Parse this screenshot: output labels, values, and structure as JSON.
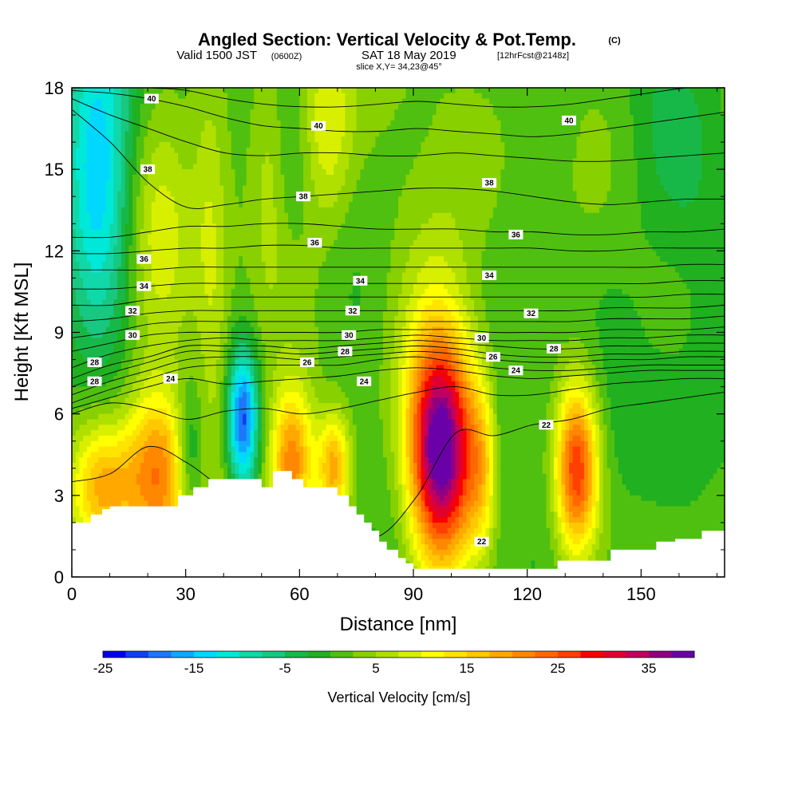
{
  "header": {
    "title_main": "Angled Section: Vertical Velocity & Pot.Temp.",
    "title_unit": "(C)",
    "valid_prefix": "Valid 1500 JST",
    "valid_utc": "(0600Z)",
    "valid_date": "SAT 18 May 2019",
    "forecast": "[12hrFcst@2148z]",
    "slice": "slice X,Y= 34,23@45°"
  },
  "colorbar": {
    "title": "Vertical Velocity [cm/s]",
    "tick_labels": [
      "-25",
      "-15",
      "-5",
      "5",
      "15",
      "25",
      "35"
    ],
    "tick_values": [
      -25,
      -15,
      -5,
      5,
      15,
      25,
      35
    ],
    "range": [
      -25,
      40
    ],
    "colors": [
      "#0000ee",
      "#1040f0",
      "#1c78f8",
      "#10a8ff",
      "#00d8ff",
      "#00e8d8",
      "#10d8a8",
      "#18c880",
      "#18b848",
      "#20b020",
      "#50c010",
      "#88d000",
      "#b0e000",
      "#d8f000",
      "#ffff00",
      "#ffe400",
      "#ffc800",
      "#ffa800",
      "#ff8800",
      "#ff6800",
      "#ff4000",
      "#f80000",
      "#e00030",
      "#c00060",
      "#900080",
      "#6a00a8"
    ]
  },
  "chart_data": {
    "type": "heatmap",
    "title": "Angled Section: Vertical Velocity & Pot.Temp.",
    "xlabel": "Distance [nm]",
    "ylabel": "Height [Kft MSL]",
    "xlim": [
      0,
      172
    ],
    "ylim": [
      0,
      18
    ],
    "x_ticks": [
      0,
      30,
      60,
      90,
      120,
      150
    ],
    "y_ticks": [
      0,
      3,
      6,
      9,
      12,
      15,
      18
    ],
    "background_wind_cms": 1,
    "updrafts": [
      {
        "x": 97,
        "y": 4.6,
        "sx": 6,
        "sy": 3.0,
        "peak_cms": 40
      },
      {
        "x": 133,
        "y": 4.0,
        "sx": 4,
        "sy": 2.2,
        "peak_cms": 27
      },
      {
        "x": 23,
        "y": 3.8,
        "sx": 6,
        "sy": 2.2,
        "peak_cms": 22
      },
      {
        "x": 8,
        "y": 3.3,
        "sx": 6,
        "sy": 1.6,
        "peak_cms": 14
      },
      {
        "x": 58,
        "y": 4.2,
        "sx": 4,
        "sy": 1.9,
        "peak_cms": 22
      },
      {
        "x": 69,
        "y": 4.0,
        "sx": 3,
        "sy": 1.4,
        "peak_cms": 18
      },
      {
        "x": 108,
        "y": 4.0,
        "sx": 3,
        "sy": 2.2,
        "peak_cms": 9
      },
      {
        "x": 38,
        "y": 11.0,
        "sx": 3.5,
        "sy": 6.0,
        "peak_cms": 8
      },
      {
        "x": 22,
        "y": 13.5,
        "sx": 7,
        "sy": 4.0,
        "peak_cms": 9
      },
      {
        "x": 67,
        "y": 16.5,
        "sx": 5,
        "sy": 2.8,
        "peak_cms": 10
      },
      {
        "x": 52,
        "y": 15.0,
        "sx": 3,
        "sy": 3.0,
        "peak_cms": 5
      },
      {
        "x": 100,
        "y": 12.0,
        "sx": 12,
        "sy": 3.0,
        "peak_cms": 4
      }
    ],
    "downdrafts": [
      {
        "x": 7,
        "y": 15.0,
        "sx": 7,
        "sy": 4.0,
        "peak_cms": -18
      },
      {
        "x": 45,
        "y": 5.8,
        "sx": 2.8,
        "sy": 1.8,
        "peak_cms": -22
      },
      {
        "x": 31,
        "y": 4.5,
        "sx": 2.5,
        "sy": 1.6,
        "peak_cms": -8
      },
      {
        "x": 40,
        "y": 14.0,
        "sx": 3,
        "sy": 5.0,
        "peak_cms": -4
      },
      {
        "x": 113,
        "y": 4.5,
        "sx": 2,
        "sy": 2.2,
        "peak_cms": -4
      },
      {
        "x": 145,
        "y": 4.5,
        "sx": 8,
        "sy": 2.5,
        "peak_cms": -4
      },
      {
        "x": 160,
        "y": 14.0,
        "sx": 12,
        "sy": 3.0,
        "peak_cms": -3
      }
    ],
    "terrain": {
      "x": [
        0,
        5,
        8,
        10,
        14,
        22,
        28,
        32,
        36,
        42,
        47,
        50,
        53,
        57,
        58,
        61,
        65,
        68,
        70,
        73,
        75,
        77,
        79,
        81,
        83,
        86,
        88,
        90,
        95,
        104,
        108,
        113,
        119,
        124,
        128,
        142,
        148,
        154,
        159,
        166,
        172
      ],
      "height_kft": [
        2.0,
        2.3,
        2.5,
        2.6,
        2.6,
        2.6,
        3.0,
        3.3,
        3.6,
        3.6,
        3.6,
        3.3,
        3.9,
        3.9,
        3.6,
        3.3,
        3.3,
        3.3,
        3.0,
        2.6,
        2.3,
        2.0,
        1.7,
        1.3,
        1.0,
        0.7,
        0.5,
        0.3,
        0.3,
        0.3,
        0.3,
        0.3,
        0.3,
        0.3,
        0.6,
        1.0,
        1.0,
        1.3,
        1.4,
        1.7,
        1.7
      ]
    },
    "potential_temperature_isentropes": [
      {
        "theta": 22,
        "y": [
          3.5,
          3.8,
          4.8,
          4.2,
          3.2,
          2.6,
          2.3,
          1.8,
          1.5,
          3.0,
          5.3,
          5.2,
          5.6,
          5.8,
          6.2,
          6.4,
          6.6,
          6.8
        ]
      },
      {
        "theta": 23,
        "y": [
          6.0,
          6.4,
          6.2,
          5.8,
          6.1,
          6.2,
          6.0,
          6.2,
          6.5,
          6.8,
          7.0,
          6.7,
          6.7,
          6.9,
          7.1,
          7.2,
          7.3,
          7.3
        ]
      },
      {
        "theta": 24,
        "y": [
          6.2,
          6.6,
          7.0,
          7.3,
          7.1,
          7.2,
          7.3,
          7.4,
          7.6,
          7.7,
          7.6,
          7.4,
          7.3,
          7.4,
          7.5,
          7.6,
          7.6,
          7.6
        ]
      },
      {
        "theta": 25,
        "y": [
          6.4,
          6.9,
          7.3,
          7.7,
          7.8,
          7.8,
          7.8,
          7.8,
          8.0,
          8.1,
          7.9,
          7.7,
          7.6,
          7.6,
          7.7,
          7.8,
          7.8,
          7.8
        ]
      },
      {
        "theta": 26,
        "y": [
          6.7,
          7.2,
          7.6,
          8.0,
          8.1,
          8.1,
          8.0,
          8.1,
          8.2,
          8.3,
          8.2,
          8.0,
          7.9,
          7.9,
          8.0,
          8.0,
          8.1,
          8.1
        ]
      },
      {
        "theta": 27,
        "y": [
          7.0,
          7.5,
          7.9,
          8.3,
          8.3,
          8.3,
          8.2,
          8.3,
          8.4,
          8.5,
          8.4,
          8.2,
          8.1,
          8.1,
          8.2,
          8.2,
          8.3,
          8.3
        ]
      },
      {
        "theta": 28,
        "y": [
          7.3,
          7.8,
          8.1,
          8.5,
          8.5,
          8.5,
          8.4,
          8.5,
          8.6,
          8.7,
          8.6,
          8.5,
          8.4,
          8.4,
          8.5,
          8.5,
          8.6,
          8.6
        ]
      },
      {
        "theta": 29,
        "y": [
          7.7,
          8.2,
          8.5,
          8.7,
          8.8,
          8.7,
          8.7,
          8.7,
          8.8,
          8.9,
          8.8,
          8.7,
          8.7,
          8.7,
          8.8,
          8.8,
          8.9,
          8.9
        ]
      },
      {
        "theta": 30,
        "y": [
          8.3,
          8.6,
          8.9,
          9.0,
          9.0,
          9.0,
          9.0,
          9.0,
          9.1,
          9.1,
          9.1,
          9.0,
          9.0,
          9.0,
          9.1,
          9.1,
          9.1,
          9.2
        ]
      },
      {
        "theta": 31,
        "y": [
          8.8,
          9.0,
          9.3,
          9.4,
          9.4,
          9.4,
          9.4,
          9.4,
          9.4,
          9.4,
          9.4,
          9.4,
          9.4,
          9.4,
          9.5,
          9.5,
          9.5,
          9.6
        ]
      },
      {
        "theta": 32,
        "y": [
          9.4,
          9.5,
          9.7,
          9.8,
          9.8,
          9.8,
          9.8,
          9.8,
          9.8,
          9.8,
          9.8,
          9.8,
          9.8,
          9.8,
          9.9,
          9.9,
          9.9,
          10.0
        ]
      },
      {
        "theta": 33,
        "y": [
          10.0,
          10.0,
          10.2,
          10.3,
          10.3,
          10.3,
          10.3,
          10.3,
          10.3,
          10.3,
          10.3,
          10.3,
          10.3,
          10.3,
          10.3,
          10.3,
          10.4,
          10.4
        ]
      },
      {
        "theta": 34,
        "y": [
          10.6,
          10.6,
          10.7,
          10.8,
          10.8,
          10.8,
          10.8,
          10.8,
          10.8,
          10.8,
          10.8,
          10.8,
          10.8,
          10.8,
          10.8,
          10.8,
          10.9,
          10.9
        ]
      },
      {
        "theta": 35,
        "y": [
          11.3,
          11.3,
          11.3,
          11.4,
          11.4,
          11.4,
          11.4,
          11.4,
          11.4,
          11.4,
          11.4,
          11.4,
          11.4,
          11.4,
          11.4,
          11.4,
          11.5,
          11.5
        ]
      },
      {
        "theta": 36,
        "y": [
          11.9,
          11.9,
          12.0,
          12.1,
          12.1,
          12.2,
          12.2,
          12.1,
          12.1,
          12.1,
          12.1,
          12.1,
          12.1,
          12.0,
          12.0,
          12.1,
          12.1,
          12.1
        ]
      },
      {
        "theta": 37,
        "y": [
          12.5,
          12.5,
          12.7,
          12.9,
          12.9,
          13.0,
          13.0,
          12.9,
          12.8,
          12.8,
          12.8,
          12.7,
          12.7,
          12.6,
          12.6,
          12.7,
          12.7,
          12.8
        ]
      },
      {
        "theta": 38,
        "y": [
          17.2,
          16.0,
          14.5,
          13.6,
          13.7,
          13.9,
          14.0,
          14.1,
          14.2,
          14.3,
          14.3,
          14.2,
          14.0,
          13.8,
          13.7,
          13.8,
          13.9,
          13.9
        ]
      },
      {
        "theta": 39,
        "y": [
          17.6,
          17.0,
          16.5,
          16.0,
          15.6,
          15.5,
          15.6,
          15.6,
          15.5,
          15.5,
          15.6,
          15.5,
          15.4,
          15.3,
          15.3,
          15.4,
          15.5,
          15.6
        ]
      },
      {
        "theta": 40,
        "y": [
          17.9,
          17.8,
          17.6,
          17.3,
          16.9,
          16.6,
          16.5,
          16.4,
          16.4,
          16.5,
          16.4,
          16.3,
          16.2,
          16.3,
          16.5,
          16.7,
          16.9,
          17.1
        ]
      },
      {
        "theta": 41,
        "y": [
          18.1,
          18.1,
          18.0,
          17.9,
          17.6,
          17.4,
          17.3,
          17.3,
          17.4,
          17.5,
          17.4,
          17.3,
          17.3,
          17.4,
          17.6,
          17.8,
          18.0,
          18.1
        ]
      }
    ],
    "contour_labels": [
      {
        "text": "40",
        "x": 21,
        "y": 17.6
      },
      {
        "text": "40",
        "x": 65,
        "y": 16.6
      },
      {
        "text": "40",
        "x": 131,
        "y": 16.8
      },
      {
        "text": "38",
        "x": 20,
        "y": 15.0
      },
      {
        "text": "38",
        "x": 61,
        "y": 14.0
      },
      {
        "text": "38",
        "x": 110,
        "y": 14.5
      },
      {
        "text": "36",
        "x": 64,
        "y": 12.3
      },
      {
        "text": "36",
        "x": 117,
        "y": 12.6
      },
      {
        "text": "36",
        "x": 19,
        "y": 11.7
      },
      {
        "text": "34",
        "x": 19,
        "y": 10.7
      },
      {
        "text": "34",
        "x": 76,
        "y": 10.9
      },
      {
        "text": "34",
        "x": 110,
        "y": 11.1
      },
      {
        "text": "32",
        "x": 16,
        "y": 9.8
      },
      {
        "text": "32",
        "x": 74,
        "y": 9.8
      },
      {
        "text": "32",
        "x": 121,
        "y": 9.7
      },
      {
        "text": "30",
        "x": 16,
        "y": 8.9
      },
      {
        "text": "30",
        "x": 73,
        "y": 8.9
      },
      {
        "text": "30",
        "x": 108,
        "y": 8.8
      },
      {
        "text": "28",
        "x": 6,
        "y": 7.9
      },
      {
        "text": "28",
        "x": 72,
        "y": 8.3
      },
      {
        "text": "28",
        "x": 127,
        "y": 8.4
      },
      {
        "text": "28",
        "x": 6,
        "y": 7.2
      },
      {
        "text": "26",
        "x": 62,
        "y": 7.9
      },
      {
        "text": "26",
        "x": 111,
        "y": 8.1
      },
      {
        "text": "24",
        "x": 26,
        "y": 7.3
      },
      {
        "text": "24",
        "x": 77,
        "y": 7.2
      },
      {
        "text": "24",
        "x": 117,
        "y": 7.6
      },
      {
        "text": "22",
        "x": 125,
        "y": 5.6
      },
      {
        "text": "22",
        "x": 108,
        "y": 1.3
      }
    ]
  }
}
